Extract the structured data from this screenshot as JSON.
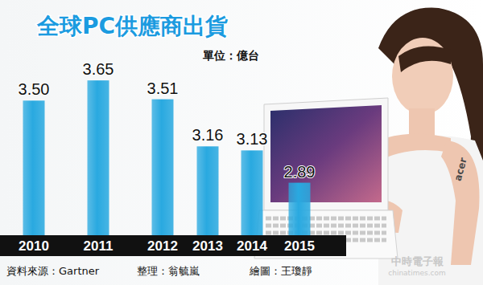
{
  "chart_data": {
    "type": "bar",
    "title": "全球PC供應商出貨",
    "subtitle": "單位：億台",
    "categories": [
      "2010",
      "2011",
      "2012",
      "2013",
      "2014",
      "2015"
    ],
    "values": [
      3.5,
      3.65,
      3.51,
      3.16,
      3.13,
      2.89
    ],
    "value_labels": [
      "3.50",
      "3.65",
      "3.51",
      "3.16",
      "3.13",
      "2.89"
    ],
    "color": "#29a9e0",
    "ylim": [
      2.5,
      3.8
    ],
    "data_labels": true,
    "tick_labels": "x",
    "annotations": [
      "資料來源：Gartner",
      "整理：翁毓嵐",
      "繪圖：王瓊靜",
      "中時電子報",
      "chinatimes.com",
      "acer"
    ]
  }
}
